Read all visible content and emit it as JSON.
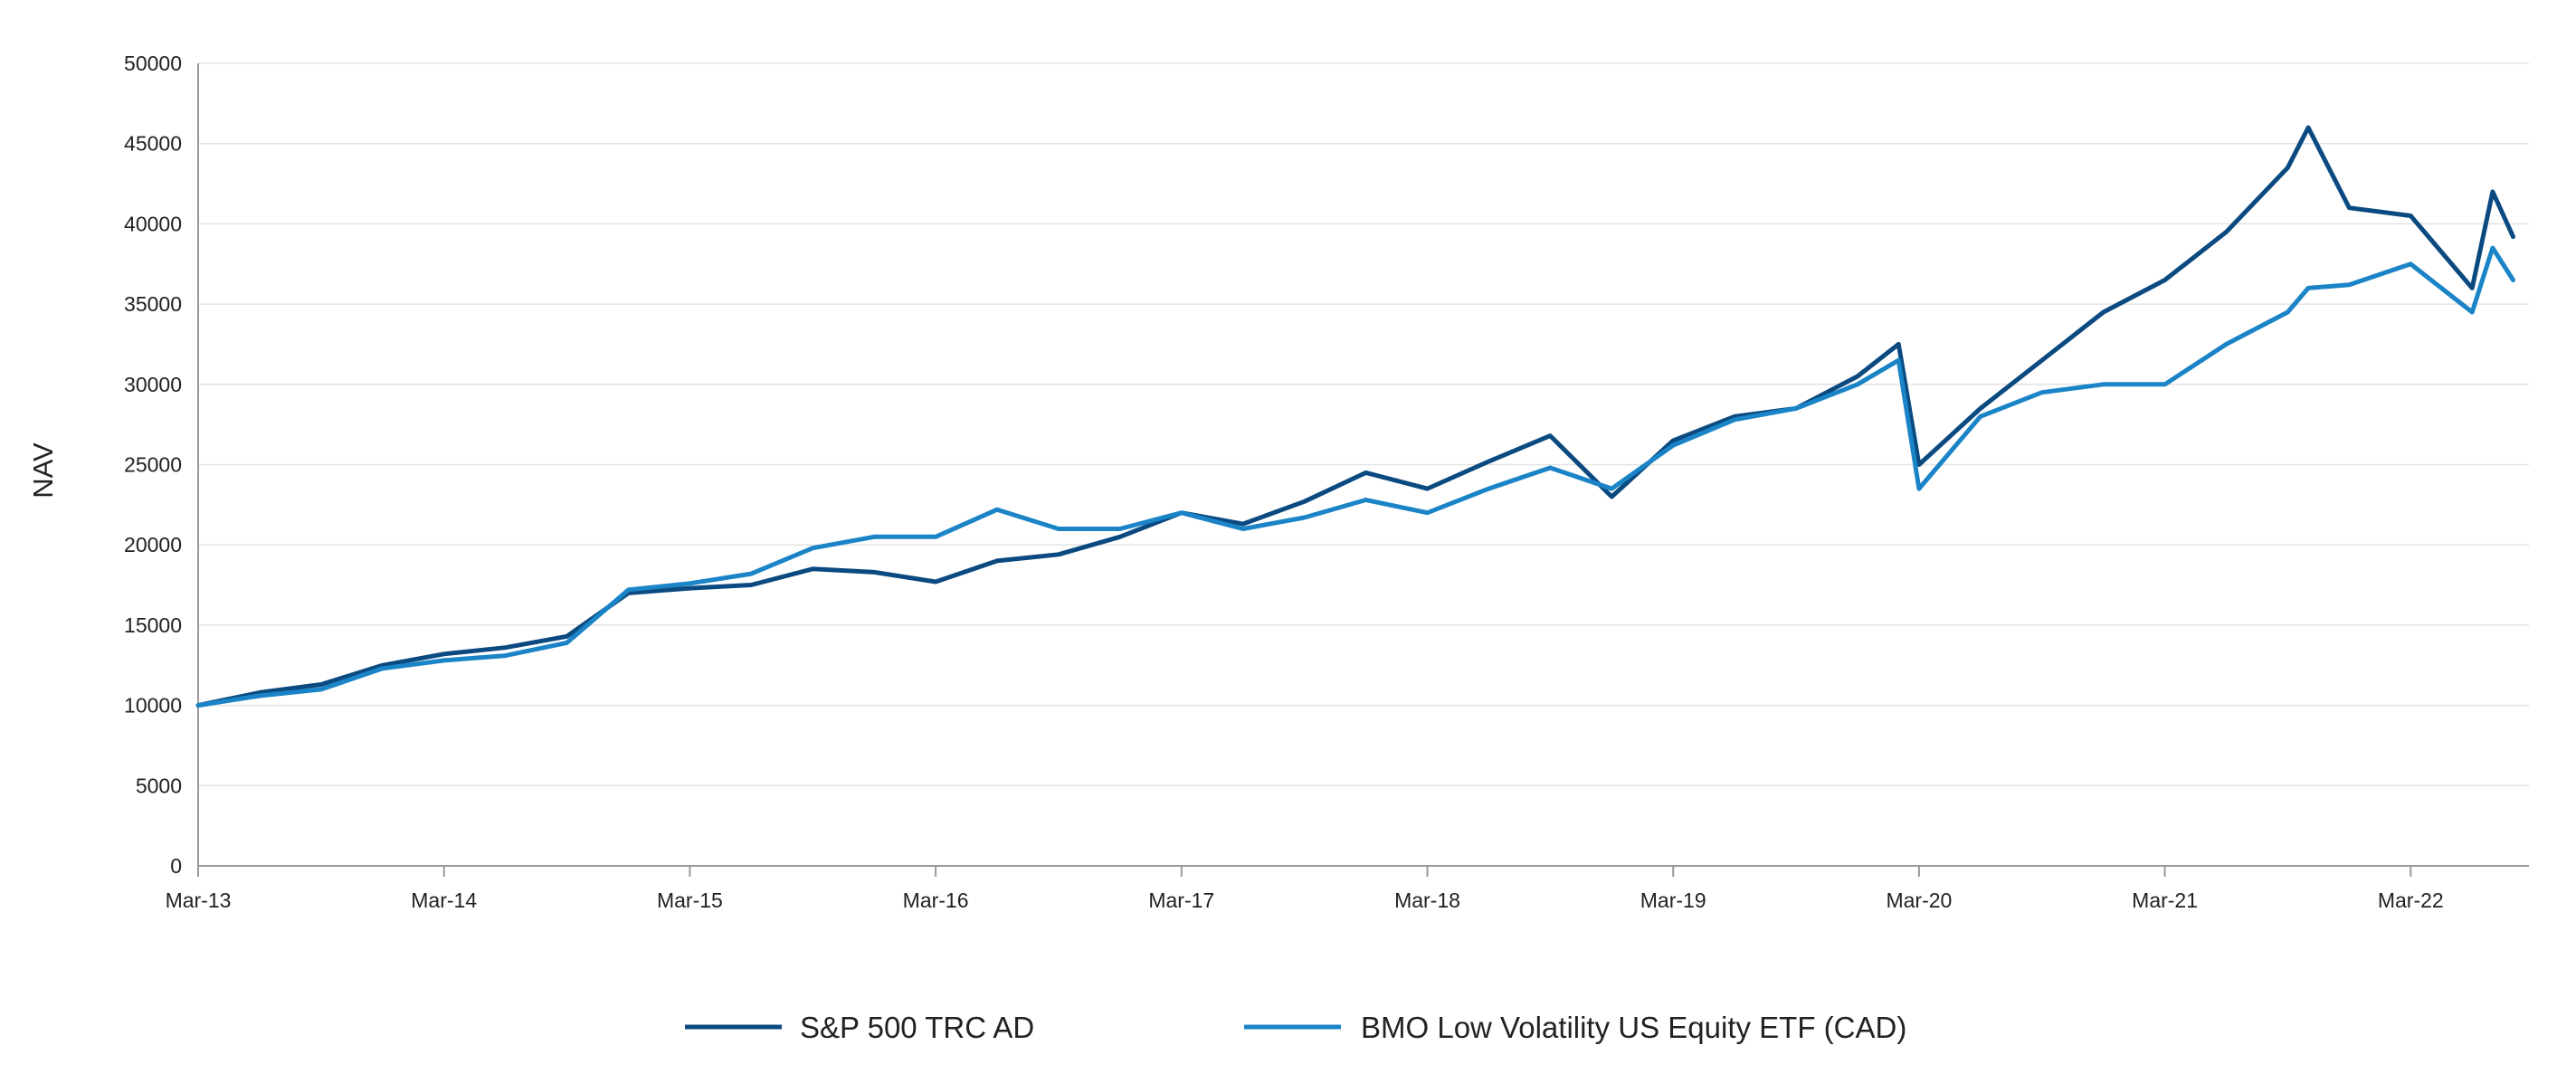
{
  "chart_data": {
    "type": "line",
    "title": "",
    "xlabel": "",
    "ylabel": "NAV",
    "ylim": [
      0,
      50000
    ],
    "y_ticks": [
      "0",
      "5000",
      "10000",
      "15000",
      "20000",
      "25000",
      "30000",
      "35000",
      "40000",
      "45000",
      "50000"
    ],
    "y_tick_values": [
      0,
      5000,
      10000,
      15000,
      20000,
      25000,
      30000,
      35000,
      40000,
      45000,
      50000
    ],
    "x_ticks": [
      "Mar-13",
      "Mar-14",
      "Mar-15",
      "Mar-16",
      "Mar-17",
      "Mar-18",
      "Mar-19",
      "Mar-20",
      "Mar-21",
      "Mar-22"
    ],
    "x_tick_dates": [
      "2013-03",
      "2014-03",
      "2015-03",
      "2016-03",
      "2017-03",
      "2018-03",
      "2019-03",
      "2020-03",
      "2021-03",
      "2022-03"
    ],
    "xlim": [
      "2013-03",
      "2022-08"
    ],
    "grid": "horizontal",
    "legend_position": "bottom",
    "x": [
      "2013-03",
      "2013-06",
      "2013-09",
      "2013-12",
      "2014-03",
      "2014-06",
      "2014-09",
      "2014-12",
      "2015-03",
      "2015-06",
      "2015-09",
      "2015-12",
      "2016-03",
      "2016-06",
      "2016-09",
      "2016-12",
      "2017-03",
      "2017-06",
      "2017-09",
      "2017-12",
      "2018-03",
      "2018-06",
      "2018-09",
      "2018-12",
      "2019-03",
      "2019-06",
      "2019-09",
      "2019-12",
      "2020-02",
      "2020-03",
      "2020-06",
      "2020-09",
      "2020-12",
      "2021-03",
      "2021-06",
      "2021-09",
      "2021-10",
      "2021-12",
      "2022-03",
      "2022-06",
      "2022-07",
      "2022-08"
    ],
    "series": [
      {
        "name": "S&P 500 TRC AD",
        "color": "#0b4a80",
        "values": [
          10000,
          10800,
          11300,
          12500,
          13200,
          13600,
          14300,
          17000,
          17300,
          17500,
          18500,
          18300,
          17700,
          19000,
          19400,
          20500,
          22000,
          21300,
          22700,
          24500,
          23500,
          25200,
          26800,
          23000,
          26500,
          28000,
          28500,
          30500,
          32500,
          25000,
          28500,
          31500,
          34500,
          36500,
          39500,
          43500,
          46000,
          41000,
          40500,
          36000,
          42000,
          39200
        ]
      },
      {
        "name": "BMO Low Volatility US Equity ETF (CAD)",
        "color": "#1a84c7",
        "values": [
          10000,
          10600,
          11000,
          12300,
          12800,
          13100,
          13900,
          17200,
          17600,
          18200,
          19800,
          20500,
          20500,
          22200,
          21000,
          21000,
          22000,
          21000,
          21700,
          22800,
          22000,
          23500,
          24800,
          23500,
          26200,
          27800,
          28500,
          30000,
          31500,
          23500,
          28000,
          29500,
          30000,
          30000,
          32500,
          34500,
          36000,
          36200,
          37500,
          34500,
          38500,
          36500
        ]
      }
    ]
  }
}
